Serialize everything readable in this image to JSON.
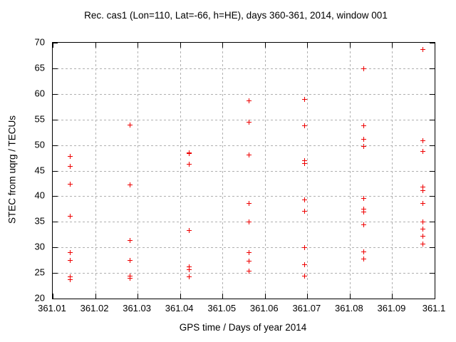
{
  "chart_data": {
    "type": "scatter",
    "title": "Rec. cas1 (Lon=110, Lat=-66, h=HE), days 360-361, 2014, window 001",
    "xlabel": "GPS time / Days of year 2014",
    "ylabel": "STEC from uqrg / TECUs",
    "xlim": [
      361.01,
      361.1
    ],
    "ylim": [
      20,
      70
    ],
    "xticks": [
      361.01,
      361.02,
      361.03,
      361.04,
      361.05,
      361.06,
      361.07,
      361.08,
      361.09,
      361.1
    ],
    "xtick_labels": [
      "361.01",
      "361.02",
      "361.03",
      "361.04",
      "361.05",
      "361.06",
      "361.07",
      "361.08",
      "361.09",
      "361.1"
    ],
    "yticks": [
      20,
      25,
      30,
      35,
      40,
      45,
      50,
      55,
      60,
      65,
      70
    ],
    "ytick_labels": [
      "20",
      "25",
      "30",
      "35",
      "40",
      "45",
      "50",
      "55",
      "60",
      "65",
      "70"
    ],
    "grid": true,
    "legend": "none",
    "marker": "plus",
    "colors": {
      "marker": "#ee0000",
      "grid": "#b0b0b0",
      "axis": "#000000",
      "background": "#ffffff"
    },
    "series": [
      {
        "name": "STEC",
        "points": [
          [
            361.0141,
            47.8
          ],
          [
            361.0141,
            45.9
          ],
          [
            361.0141,
            42.4
          ],
          [
            361.0141,
            36.1
          ],
          [
            361.0141,
            29.0
          ],
          [
            361.0141,
            27.5
          ],
          [
            361.0141,
            24.3
          ],
          [
            361.0141,
            23.8
          ],
          [
            361.0281,
            54.0
          ],
          [
            361.0281,
            42.3
          ],
          [
            361.0281,
            31.4
          ],
          [
            361.0281,
            27.5
          ],
          [
            361.0281,
            24.5
          ],
          [
            361.0281,
            24.0
          ],
          [
            361.0421,
            48.6
          ],
          [
            361.0421,
            48.4
          ],
          [
            361.0421,
            46.3
          ],
          [
            361.0421,
            33.4
          ],
          [
            361.0421,
            26.3
          ],
          [
            361.0421,
            25.7
          ],
          [
            361.0421,
            24.3
          ],
          [
            361.0561,
            58.7
          ],
          [
            361.0561,
            54.5
          ],
          [
            361.0561,
            48.2
          ],
          [
            361.0561,
            38.7
          ],
          [
            361.0561,
            35.1
          ],
          [
            361.0561,
            29.0
          ],
          [
            361.0561,
            27.4
          ],
          [
            361.0561,
            25.4
          ],
          [
            361.0692,
            59.0
          ],
          [
            361.0692,
            53.9
          ],
          [
            361.0692,
            47.0
          ],
          [
            361.0692,
            46.4
          ],
          [
            361.0692,
            39.4
          ],
          [
            361.0692,
            37.1
          ],
          [
            361.0692,
            30.0
          ],
          [
            361.0692,
            26.7
          ],
          [
            361.0692,
            24.4
          ],
          [
            361.0832,
            65.0
          ],
          [
            361.0832,
            53.9
          ],
          [
            361.0832,
            51.2
          ],
          [
            361.0832,
            49.8
          ],
          [
            361.0832,
            39.7
          ],
          [
            361.0832,
            37.6
          ],
          [
            361.0832,
            37.0
          ],
          [
            361.0832,
            34.5
          ],
          [
            361.0832,
            29.2
          ],
          [
            361.0832,
            27.8
          ],
          [
            361.0971,
            68.8
          ],
          [
            361.0971,
            50.9
          ],
          [
            361.0971,
            48.8
          ],
          [
            361.0971,
            41.8
          ],
          [
            361.0971,
            41.2
          ],
          [
            361.0971,
            38.7
          ],
          [
            361.0971,
            35.1
          ],
          [
            361.0971,
            33.6
          ],
          [
            361.0971,
            32.2
          ],
          [
            361.0971,
            30.7
          ]
        ]
      }
    ]
  }
}
